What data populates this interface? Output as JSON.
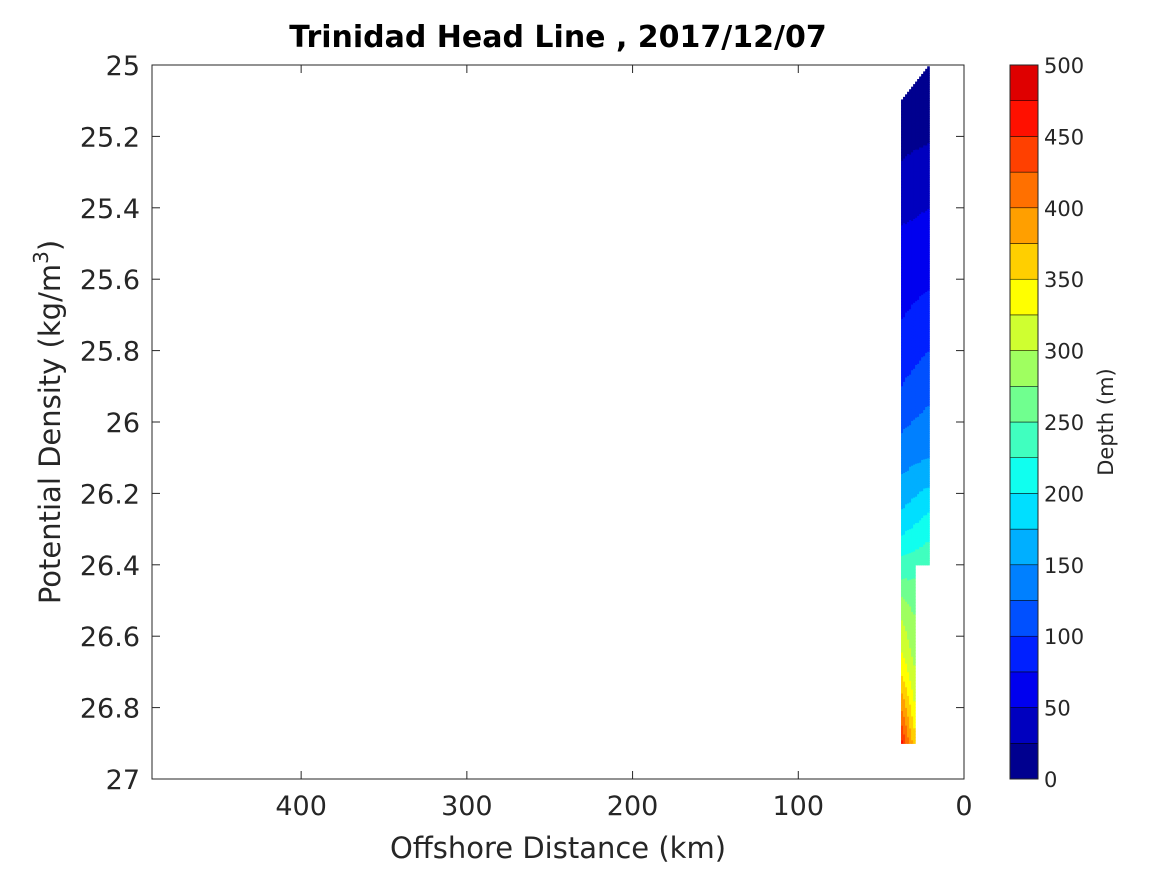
{
  "chart_data": {
    "type": "contour",
    "title": "Trinidad Head Line , 2017/12/07",
    "xlabel": "Offshore Distance (km)",
    "ylabel_main": "Potential Density (kg/m",
    "ylabel_sup": "3",
    "ylabel_close": ")",
    "x_reversed": true,
    "xlim": [
      490,
      0
    ],
    "ylim": [
      25,
      27
    ],
    "y_reversed": true,
    "x_ticks": [
      400,
      300,
      200,
      100,
      0
    ],
    "x_tick_labels": [
      "400",
      "300",
      "200",
      "100",
      "0"
    ],
    "y_ticks": [
      25,
      25.2,
      25.4,
      25.6,
      25.8,
      26,
      26.2,
      26.4,
      26.6,
      26.8,
      27
    ],
    "y_tick_labels": [
      "25",
      "25.2",
      "25.4",
      "25.6",
      "25.8",
      "26",
      "26.2",
      "26.4",
      "26.6",
      "26.8",
      "27"
    ],
    "colorbar": {
      "label": "Depth (m)",
      "range": [
        0,
        500
      ],
      "step": 25,
      "ticks": [
        0,
        50,
        100,
        150,
        200,
        250,
        300,
        350,
        400,
        450,
        500
      ],
      "tick_labels": [
        "0",
        "50",
        "100",
        "150",
        "200",
        "250",
        "300",
        "350",
        "400",
        "450",
        "500"
      ],
      "colors": [
        "#00008f",
        "#0000bf",
        "#0000ef",
        "#0020ff",
        "#0050ff",
        "#0080ff",
        "#00afff",
        "#00dfff",
        "#10ffef",
        "#40ffbf",
        "#70ff8f",
        "#9fff60",
        "#cfff30",
        "#ffff00",
        "#ffcf00",
        "#ff9f00",
        "#ff7000",
        "#ff4000",
        "#ff1000",
        "#df0000"
      ]
    },
    "stations": [
      {
        "x_km": 38,
        "profile": [
          {
            "sigma": 25.1,
            "depth": 10
          },
          {
            "sigma": 25.27,
            "depth": 25
          },
          {
            "sigma": 25.45,
            "depth": 50
          },
          {
            "sigma": 25.72,
            "depth": 75
          },
          {
            "sigma": 25.9,
            "depth": 100
          },
          {
            "sigma": 26.03,
            "depth": 125
          },
          {
            "sigma": 26.15,
            "depth": 150
          },
          {
            "sigma": 26.25,
            "depth": 175
          },
          {
            "sigma": 26.32,
            "depth": 200
          },
          {
            "sigma": 26.38,
            "depth": 225
          },
          {
            "sigma": 26.44,
            "depth": 250
          },
          {
            "sigma": 26.49,
            "depth": 275
          },
          {
            "sigma": 26.55,
            "depth": 300
          },
          {
            "sigma": 26.64,
            "depth": 325
          },
          {
            "sigma": 26.7,
            "depth": 350
          },
          {
            "sigma": 26.75,
            "depth": 375
          },
          {
            "sigma": 26.8,
            "depth": 400
          },
          {
            "sigma": 26.84,
            "depth": 425
          },
          {
            "sigma": 26.9,
            "depth": 460
          }
        ]
      },
      {
        "x_km": 21,
        "profile": [
          {
            "sigma": 25.0,
            "depth": 5
          },
          {
            "sigma": 25.22,
            "depth": 25
          },
          {
            "sigma": 25.4,
            "depth": 50
          },
          {
            "sigma": 25.63,
            "depth": 75
          },
          {
            "sigma": 25.8,
            "depth": 100
          },
          {
            "sigma": 25.95,
            "depth": 125
          },
          {
            "sigma": 26.1,
            "depth": 150
          },
          {
            "sigma": 26.18,
            "depth": 175
          },
          {
            "sigma": 26.25,
            "depth": 200
          },
          {
            "sigma": 26.3,
            "depth": 215
          },
          {
            "sigma": 26.35,
            "depth": 230
          },
          {
            "sigma": 26.4,
            "depth": 250
          }
        ]
      }
    ]
  }
}
